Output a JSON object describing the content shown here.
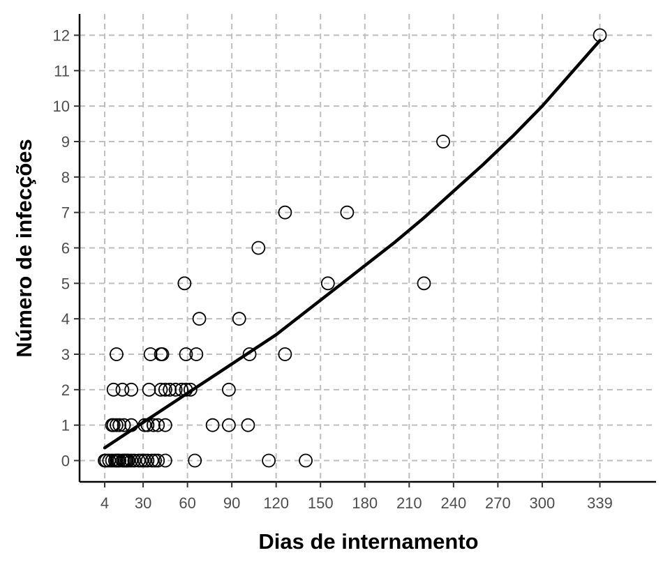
{
  "chart_data": {
    "type": "scatter",
    "title": "",
    "xlabel": "Dias de internamento",
    "ylabel": "Número de infecções",
    "xlim": [
      -13,
      377
    ],
    "ylim": [
      -0.6,
      12.6
    ],
    "xticks": [
      4,
      30,
      60,
      90,
      120,
      150,
      180,
      210,
      240,
      270,
      300,
      339
    ],
    "yticks": [
      0,
      1,
      2,
      3,
      4,
      5,
      6,
      7,
      8,
      9,
      10,
      11,
      12
    ],
    "grid": true,
    "legend": "none",
    "colors": {
      "points": "#000000",
      "fit_line": "#000000",
      "grid": "#bebebe"
    },
    "series": [
      {
        "kind": "points",
        "x": [
          4,
          5,
          7,
          9,
          11,
          12,
          13,
          14,
          16,
          17,
          18,
          19,
          20,
          22,
          24,
          27,
          29,
          31,
          33,
          36,
          38,
          40,
          45,
          9,
          10,
          12,
          14,
          17,
          22,
          31,
          33,
          37,
          40,
          45,
          77,
          88,
          101,
          10,
          16,
          22,
          34,
          42,
          45,
          48,
          52,
          56,
          59,
          62,
          88,
          12,
          35,
          42,
          43,
          59,
          66,
          102,
          126,
          68,
          95,
          58,
          155,
          220,
          108,
          126,
          168,
          233,
          339,
          65,
          115,
          140
        ],
        "y": [
          0,
          0,
          0,
          0,
          0,
          0,
          0,
          0,
          0,
          0,
          0,
          0,
          0,
          0,
          0,
          0,
          0,
          0,
          0,
          0,
          0,
          0,
          0,
          1,
          1,
          1,
          1,
          1,
          1,
          1,
          1,
          1,
          1,
          1,
          1,
          1,
          1,
          2,
          2,
          2,
          2,
          2,
          2,
          2,
          2,
          2,
          2,
          2,
          2,
          3,
          3,
          3,
          3,
          3,
          3,
          3,
          3,
          4,
          4,
          5,
          5,
          5,
          6,
          7,
          7,
          9,
          12,
          0,
          0,
          0
        ]
      },
      {
        "kind": "fit_line",
        "x": [
          4,
          20,
          40,
          60,
          80,
          100,
          120,
          140,
          160,
          180,
          200,
          220,
          240,
          260,
          280,
          300,
          320,
          339
        ],
        "y": [
          0.36,
          0.8,
          1.35,
          1.9,
          2.45,
          3.0,
          3.55,
          4.2,
          4.85,
          5.5,
          6.15,
          6.85,
          7.6,
          8.35,
          9.15,
          10.0,
          10.95,
          11.85
        ]
      }
    ]
  }
}
